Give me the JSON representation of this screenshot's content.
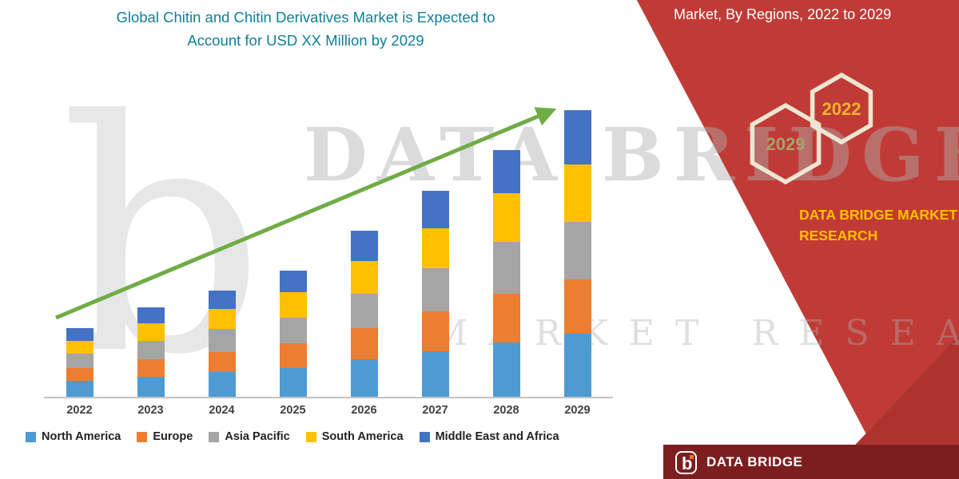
{
  "title": {
    "line1": "Global Chitin and Chitin Derivatives Market is Expected to",
    "line2": "Account for USD XX Million by 2029"
  },
  "banner": {
    "heading": "Market, By Regions, 2022 to 2029",
    "hex_back_year": "2029",
    "hex_front_year": "2022",
    "brand_line1": "DATA BRIDGE MARKET",
    "brand_line2": "RESEARCH"
  },
  "watermark": {
    "row1": "DATA BRIDGE",
    "row2": "MARKET RESEARCH",
    "logo_glyph": "b"
  },
  "footer": {
    "brand": "DATA BRIDGE"
  },
  "chart_data": {
    "type": "bar",
    "stacked": true,
    "title": "Global Chitin and Chitin Derivatives Market is Expected to Account for USD XX Million by 2029",
    "categories": [
      "2022",
      "2023",
      "2024",
      "2025",
      "2026",
      "2027",
      "2028",
      "2029"
    ],
    "series": [
      {
        "name": "North America",
        "color": "#4E9BD4",
        "values": [
          5.5,
          7,
          8.5,
          10,
          13,
          16,
          19,
          22
        ]
      },
      {
        "name": "Europe",
        "color": "#ED7D31",
        "values": [
          4.5,
          6,
          7,
          8.5,
          11,
          14,
          17,
          19
        ]
      },
      {
        "name": "Asia Pacific",
        "color": "#A5A5A5",
        "values": [
          5,
          6.5,
          8,
          9,
          12,
          15,
          18,
          20
        ]
      },
      {
        "name": "South America",
        "color": "#FFC000",
        "values": [
          4.5,
          6,
          7,
          9,
          11.5,
          14,
          17,
          20
        ]
      },
      {
        "name": "Middle East and Africa",
        "color": "#4472C4",
        "values": [
          4.5,
          5.5,
          6.5,
          7.5,
          10.5,
          13,
          15,
          19
        ]
      }
    ],
    "totals": [
      24,
      31,
      37,
      44,
      58,
      72,
      86,
      100
    ],
    "ylim": [
      0,
      105
    ],
    "yaxis_visible": false,
    "gridlines": false,
    "legend_position": "bottom",
    "annotations": [
      "green upward trend arrow across bars"
    ],
    "note": "y-axis has no labels; values are relative estimates read from bar heights"
  },
  "colors": {
    "banner-red": "#C13B36",
    "banner-red-dark": "#AE332E",
    "footer-red": "#7C1E20",
    "title-teal": "#0E7F99",
    "arrow-green": "#6FAC46",
    "gold": "#FFC000",
    "hex-border": "#EDE6D2",
    "hex-2029-text": "#A3A36B",
    "hex-2022-text": "#F2B42C",
    "axis-gray": "#C4C4C4"
  }
}
